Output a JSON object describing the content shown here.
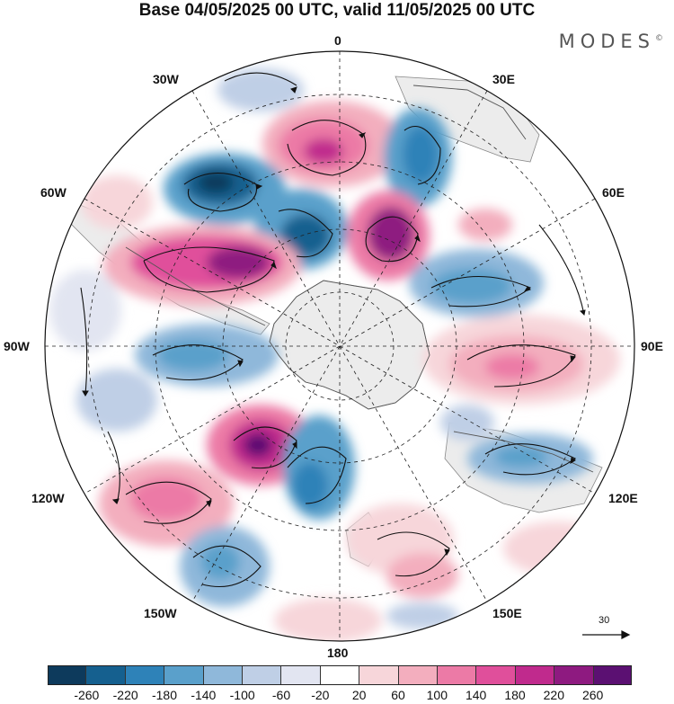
{
  "title": "Base 04/05/2025 00 UTC, valid 11/05/2025 00 UTC",
  "brand": "MODES",
  "brand_mark": "©",
  "longitude_labels": {
    "lon_0": "0",
    "lon_30e": "30E",
    "lon_60e": "60E",
    "lon_90e": "90E",
    "lon_120e": "120E",
    "lon_150e": "150E",
    "lon_180": "180",
    "lon_150w": "150W",
    "lon_120w": "120W",
    "lon_90w": "90W",
    "lon_60w": "60W",
    "lon_30w": "30W"
  },
  "reference_vector": "30",
  "colorbar": {
    "colors": [
      "#0d3a5c",
      "#15608f",
      "#2e82b8",
      "#5aa0cb",
      "#8fb8da",
      "#bfcfe6",
      "#e2e5f1",
      "#ffffff",
      "#f7d6da",
      "#f3aebe",
      "#ec7aa6",
      "#e04f9b",
      "#c02a8d",
      "#8e1a80",
      "#5b1072"
    ],
    "ticks": [
      "-260",
      "-220",
      "-180",
      "-140",
      "-100",
      "-60",
      "-20",
      "20",
      "60",
      "100",
      "140",
      "180",
      "220",
      "260"
    ]
  }
}
